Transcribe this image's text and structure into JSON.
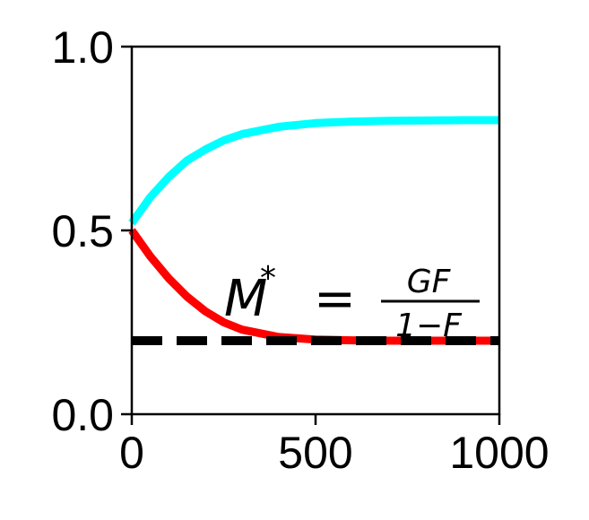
{
  "chart_data": {
    "type": "line",
    "title": "",
    "xlabel": "",
    "ylabel": "",
    "xlim": [
      0,
      1000
    ],
    "ylim": [
      0,
      1.0
    ],
    "x_ticks": [
      "0",
      "500",
      "1000"
    ],
    "y_ticks": [
      "0.0",
      "0.5",
      "1.0"
    ],
    "grid": false,
    "legend": "none",
    "series": [
      {
        "color": "#00ffff",
        "style": "solid",
        "x": [
          0,
          50,
          100,
          150,
          200,
          250,
          300,
          400,
          500,
          600,
          700,
          800,
          900,
          1000
        ],
        "y": [
          0.52,
          0.59,
          0.645,
          0.69,
          0.72,
          0.745,
          0.762,
          0.782,
          0.792,
          0.796,
          0.798,
          0.799,
          0.8,
          0.8
        ]
      },
      {
        "color": "#ff0000",
        "style": "solid",
        "x": [
          0,
          50,
          100,
          150,
          200,
          250,
          300,
          400,
          500,
          600,
          700,
          800,
          900,
          1000
        ],
        "y": [
          0.5,
          0.43,
          0.37,
          0.32,
          0.28,
          0.25,
          0.23,
          0.21,
          0.203,
          0.201,
          0.2,
          0.2,
          0.2,
          0.2
        ]
      },
      {
        "color": "#000000",
        "style": "dashed",
        "x": [
          0,
          1000
        ],
        "y": [
          0.2,
          0.2
        ]
      }
    ],
    "annotations": [
      {
        "lhs": "M",
        "sup": "*",
        "eq": "=",
        "numerator": "GF",
        "denominator": "1−F"
      }
    ]
  }
}
